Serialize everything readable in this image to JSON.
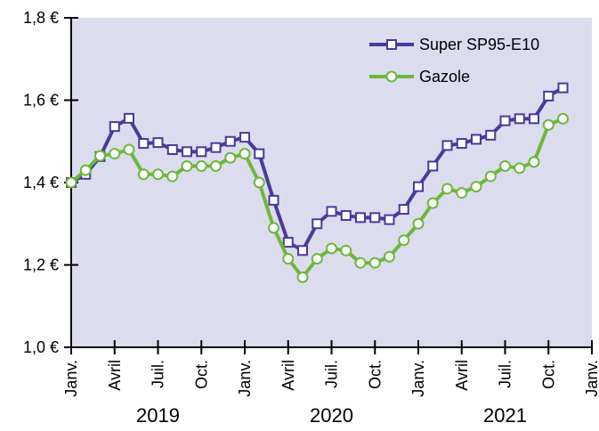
{
  "chart_data": {
    "type": "line",
    "x": [
      0,
      1,
      2,
      3,
      4,
      5,
      6,
      7,
      8,
      9,
      10,
      11,
      12,
      13,
      14,
      15,
      16,
      17,
      18,
      19,
      20,
      21,
      22,
      23,
      24,
      25,
      26,
      27,
      28,
      29,
      30,
      31,
      32,
      33,
      34
    ],
    "series": [
      {
        "name": "Super SP95-E10",
        "color": "#4b3a9c",
        "marker": "square",
        "values": [
          1.4,
          1.42,
          1.463,
          1.536,
          1.556,
          1.495,
          1.497,
          1.48,
          1.475,
          1.475,
          1.485,
          1.5,
          1.51,
          1.47,
          1.357,
          1.255,
          1.235,
          1.3,
          1.33,
          1.32,
          1.315,
          1.315,
          1.31,
          1.335,
          1.39,
          1.44,
          1.49,
          1.495,
          1.505,
          1.515,
          1.55,
          1.555,
          1.555,
          1.61,
          1.63
        ]
      },
      {
        "name": "Gazole",
        "color": "#6cb83a",
        "marker": "circle",
        "values": [
          1.4,
          1.43,
          1.465,
          1.47,
          1.48,
          1.42,
          1.42,
          1.415,
          1.44,
          1.44,
          1.44,
          1.46,
          1.47,
          1.4,
          1.29,
          1.215,
          1.17,
          1.215,
          1.24,
          1.235,
          1.205,
          1.205,
          1.22,
          1.26,
          1.3,
          1.35,
          1.385,
          1.375,
          1.39,
          1.415,
          1.44,
          1.435,
          1.45,
          1.54,
          1.555
        ]
      }
    ],
    "xlim": [
      0,
      36
    ],
    "xticks": [
      {
        "value": 0,
        "label": "Janv."
      },
      {
        "value": 3,
        "label": "Avril"
      },
      {
        "value": 6,
        "label": "Juil."
      },
      {
        "value": 9,
        "label": "Oct."
      },
      {
        "value": 12,
        "label": "Janv."
      },
      {
        "value": 15,
        "label": "Avril"
      },
      {
        "value": 18,
        "label": "Juil."
      },
      {
        "value": 21,
        "label": "Oct."
      },
      {
        "value": 24,
        "label": "Janv."
      },
      {
        "value": 27,
        "label": "Avril"
      },
      {
        "value": 30,
        "label": "Juil."
      },
      {
        "value": 33,
        "label": "Oct."
      },
      {
        "value": 36,
        "label": "Janv."
      }
    ],
    "years": [
      "2019",
      "2020",
      "2021"
    ],
    "ylim": [
      1.0,
      1.8
    ],
    "yticks": [
      {
        "value": 1.0,
        "label": "1,0 €"
      },
      {
        "value": 1.2,
        "label": "1,2 €"
      },
      {
        "value": 1.4,
        "label": "1,4 €"
      },
      {
        "value": 1.6,
        "label": "1,6 €"
      },
      {
        "value": 1.8,
        "label": "1,8 €"
      }
    ],
    "legend": "upper right",
    "background": "#dcdcef"
  }
}
